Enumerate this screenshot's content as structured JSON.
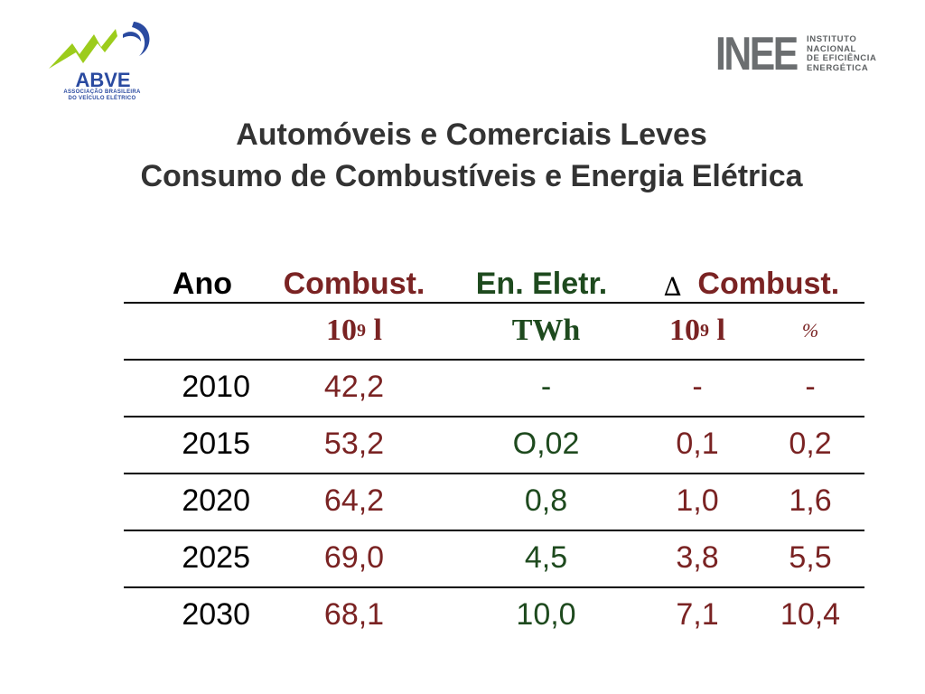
{
  "logos": {
    "left": {
      "name": "ABVE",
      "subtitle_line1": "ASSOCIAÇÃO BRASILEIRA",
      "subtitle_line2": "DO VEÍCULO ELÉTRICO"
    },
    "right": {
      "name": "INEE",
      "subtitle_lines": [
        "INSTITUTO",
        "NACIONAL",
        "DE EFICIÊNCIA",
        "ENERGÉTICA"
      ]
    }
  },
  "title": {
    "line1": "Automóveis e Comerciais Leves",
    "line2": "Consumo de Combustíveis e Energia Elétrica"
  },
  "table": {
    "headers": {
      "ano": "Ano",
      "combust": "Combust.",
      "en_eletr": "En. Eletr.",
      "delta_symbol": "∆",
      "delta_combust": "Combust."
    },
    "units": {
      "combust": {
        "base": "10",
        "exp": "9",
        "unit": " l"
      },
      "en_eletr": "TWh",
      "delta_combust": {
        "base": "10",
        "exp": "9",
        "unit": " l"
      },
      "delta_pct": "%"
    },
    "rows": [
      {
        "ano": "2010",
        "combust": "42,2",
        "en_eletr": "-",
        "delta_combust": "-",
        "delta_pct": "-"
      },
      {
        "ano": "2015",
        "combust": "53,2",
        "en_eletr": "O,02",
        "delta_combust": "0,1",
        "delta_pct": "0,2"
      },
      {
        "ano": "2020",
        "combust": "64,2",
        "en_eletr": "0,8",
        "delta_combust": "1,0",
        "delta_pct": "1,6"
      },
      {
        "ano": "2025",
        "combust": "69,0",
        "en_eletr": "4,5",
        "delta_combust": "3,8",
        "delta_pct": "5,5"
      },
      {
        "ano": "2030",
        "combust": "68,1",
        "en_eletr": "10,0",
        "delta_combust": "7,1",
        "delta_pct": "10,4"
      }
    ]
  },
  "colors": {
    "title": "#333333",
    "combust": "#7a2323",
    "en_eletr": "#1e4a1e",
    "abve_blue": "#2a4aa0",
    "abve_green": "#9ccc1c",
    "inee_gray": "#6b6e70"
  }
}
